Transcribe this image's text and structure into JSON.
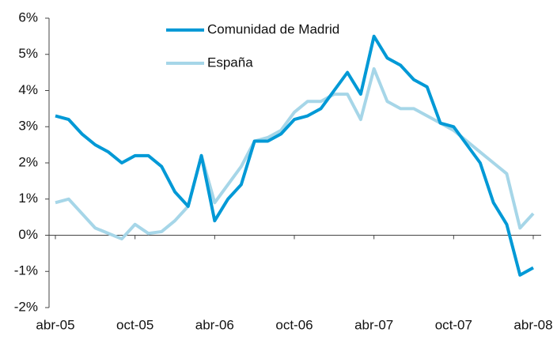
{
  "chart_data": {
    "type": "line",
    "categories": [
      "abr-05",
      null,
      null,
      null,
      null,
      null,
      "oct-05",
      null,
      null,
      null,
      null,
      null,
      "abr-06",
      null,
      null,
      null,
      null,
      null,
      "oct-06",
      null,
      null,
      null,
      null,
      null,
      "abr-07",
      null,
      null,
      null,
      null,
      null,
      "oct-07",
      null,
      null,
      null,
      null,
      null,
      "abr-08"
    ],
    "series": [
      {
        "name": "Comunidad de Madrid",
        "color": "#0099d6",
        "values": [
          3.3,
          3.2,
          2.8,
          2.5,
          2.3,
          2.0,
          2.2,
          2.2,
          1.9,
          1.2,
          0.8,
          2.2,
          0.4,
          1.0,
          1.4,
          2.6,
          2.6,
          2.8,
          3.2,
          3.3,
          3.5,
          4.0,
          4.5,
          3.9,
          5.5,
          4.9,
          4.7,
          4.3,
          4.1,
          3.1,
          3.0,
          2.5,
          2.0,
          0.9,
          0.3,
          -1.1,
          -0.9
        ]
      },
      {
        "name": "España",
        "color": "#a6d6e8",
        "values": [
          0.9,
          1.0,
          0.6,
          0.2,
          0.05,
          -0.1,
          0.3,
          0.05,
          0.1,
          0.4,
          0.8,
          2.2,
          0.9,
          1.4,
          1.9,
          2.6,
          2.7,
          2.9,
          3.4,
          3.7,
          3.7,
          3.9,
          3.9,
          3.2,
          4.6,
          3.7,
          3.5,
          3.5,
          3.3,
          3.1,
          2.9,
          2.6,
          2.3,
          2.0,
          1.7,
          0.2,
          0.6
        ]
      }
    ],
    "ylim": [
      -2,
      6
    ],
    "yticks": [
      {
        "value": -2,
        "label": "-2%"
      },
      {
        "value": -1,
        "label": "-1%"
      },
      {
        "value": 0,
        "label": "0%"
      },
      {
        "value": 1,
        "label": "1%"
      },
      {
        "value": 2,
        "label": "2%"
      },
      {
        "value": 3,
        "label": "3%"
      },
      {
        "value": 4,
        "label": "4%"
      },
      {
        "value": 5,
        "label": "5%"
      },
      {
        "value": 6,
        "label": "6%"
      }
    ],
    "legend": "top"
  }
}
